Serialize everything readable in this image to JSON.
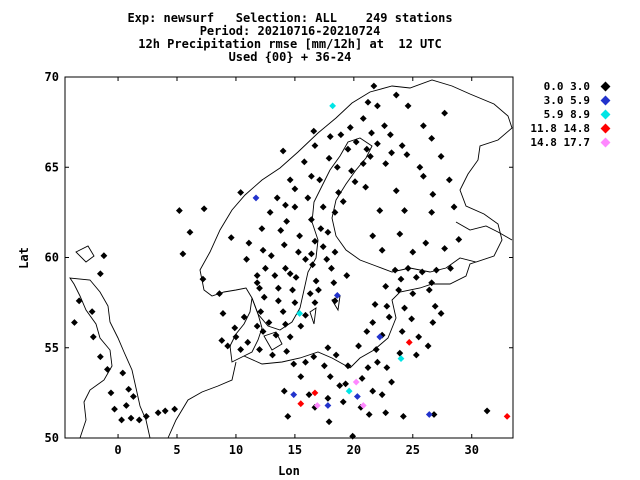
{
  "header": {
    "line1": "Exp: newsurf   Selection: ALL    249 stations",
    "line2": "Period: 20210716-20210724",
    "line3": "12h Precipitation rmse [mm/12h] at  12 UTC",
    "line4": "Used {00} + 36-24"
  },
  "axes": {
    "xlabel": "Lon",
    "ylabel": "Lat",
    "xlim": [
      -4.5,
      33.5
    ],
    "ylim": [
      50,
      70
    ],
    "xticks": [
      "0",
      "5",
      "10",
      "15",
      "20",
      "25",
      "30"
    ],
    "xtick_values": [
      0,
      5,
      10,
      15,
      20,
      25,
      30
    ],
    "yticks": [
      "50",
      "55",
      "60",
      "65",
      "70"
    ],
    "ytick_values": [
      50,
      55,
      60,
      65,
      70
    ]
  },
  "legend": [
    {
      "label": "0.0 3.0",
      "color": "#000000"
    },
    {
      "label": "3.0 5.9",
      "color": "#2233cc"
    },
    {
      "label": "5.9 8.9",
      "color": "#00e5e5"
    },
    {
      "label": "11.8 14.8",
      "color": "#ff0000"
    },
    {
      "label": "14.8 17.7",
      "color": "#ff88ff"
    }
  ],
  "chart_data": {
    "type": "scatter",
    "title": "Exp: newsurf   Selection: ALL    249 stations",
    "xlabel": "Lon",
    "ylabel": "Lat",
    "xlim": [
      -4.5,
      33.5
    ],
    "ylim": [
      50,
      70
    ],
    "series": [
      {
        "name": "0.0 3.0",
        "color": "#000000",
        "points": [
          [
            21.2,
            68.6
          ],
          [
            22.0,
            68.4
          ],
          [
            20.8,
            67.7
          ],
          [
            22.6,
            67.3
          ],
          [
            19.7,
            67.2
          ],
          [
            21.5,
            66.9
          ],
          [
            18.0,
            66.7
          ],
          [
            23.1,
            66.8
          ],
          [
            20.2,
            66.4
          ],
          [
            22.0,
            66.3
          ],
          [
            24.1,
            66.2
          ],
          [
            16.7,
            66.2
          ],
          [
            19.5,
            66.0
          ],
          [
            21.4,
            65.6
          ],
          [
            23.2,
            65.8
          ],
          [
            24.5,
            65.7
          ],
          [
            17.9,
            65.5
          ],
          [
            15.8,
            65.3
          ],
          [
            20.8,
            65.2
          ],
          [
            22.7,
            65.2
          ],
          [
            18.6,
            65.0
          ],
          [
            19.8,
            64.8
          ],
          [
            16.4,
            64.5
          ],
          [
            14.6,
            64.3
          ],
          [
            17.1,
            64.3
          ],
          [
            20.1,
            64.2
          ],
          [
            21.0,
            63.9
          ],
          [
            15.0,
            63.8
          ],
          [
            18.7,
            63.6
          ],
          [
            13.5,
            63.3
          ],
          [
            16.1,
            63.3
          ],
          [
            19.1,
            63.1
          ],
          [
            15.0,
            62.8
          ],
          [
            17.4,
            62.8
          ],
          [
            12.9,
            62.5
          ],
          [
            18.4,
            62.5
          ],
          [
            14.3,
            62.0
          ],
          [
            16.4,
            62.1
          ],
          [
            17.2,
            61.6
          ],
          [
            12.2,
            61.6
          ],
          [
            13.8,
            61.5
          ],
          [
            15.4,
            61.2
          ],
          [
            16.7,
            60.9
          ],
          [
            14.1,
            60.7
          ],
          [
            12.3,
            60.4
          ],
          [
            15.3,
            60.3
          ],
          [
            17.4,
            60.6
          ],
          [
            18.4,
            60.3
          ],
          [
            13.0,
            60.1
          ],
          [
            15.9,
            59.9
          ],
          [
            17.7,
            59.9
          ],
          [
            12.5,
            59.4
          ],
          [
            14.2,
            59.4
          ],
          [
            16.5,
            59.6
          ],
          [
            18.1,
            59.4
          ],
          [
            11.8,
            59.0
          ],
          [
            13.3,
            59.0
          ],
          [
            15.1,
            58.9
          ],
          [
            16.8,
            58.7
          ],
          [
            18.3,
            58.6
          ],
          [
            12.0,
            58.3
          ],
          [
            13.6,
            58.3
          ],
          [
            14.8,
            58.2
          ],
          [
            16.3,
            58.0
          ],
          [
            12.4,
            57.8
          ],
          [
            13.6,
            57.6
          ],
          [
            15.0,
            57.5
          ],
          [
            16.7,
            57.5
          ],
          [
            18.4,
            57.6
          ],
          [
            12.1,
            57.0
          ],
          [
            14.0,
            57.0
          ],
          [
            15.9,
            56.8
          ],
          [
            12.8,
            56.4
          ],
          [
            14.2,
            56.3
          ],
          [
            15.5,
            56.2
          ],
          [
            13.4,
            55.7
          ],
          [
            14.6,
            55.6
          ],
          [
            12.3,
            55.9
          ],
          [
            10.0,
            55.6
          ],
          [
            8.8,
            55.4
          ],
          [
            9.9,
            56.1
          ],
          [
            11.0,
            55.3
          ],
          [
            10.4,
            54.9
          ],
          [
            12.0,
            54.9
          ],
          [
            23.5,
            59.3
          ],
          [
            24.6,
            59.4
          ],
          [
            25.8,
            59.2
          ],
          [
            27.0,
            59.3
          ],
          [
            28.2,
            59.4
          ],
          [
            24.0,
            58.8
          ],
          [
            25.3,
            58.9
          ],
          [
            26.6,
            58.6
          ],
          [
            22.7,
            58.4
          ],
          [
            23.8,
            58.2
          ],
          [
            26.4,
            58.2
          ],
          [
            25.0,
            58.0
          ],
          [
            21.8,
            57.4
          ],
          [
            22.8,
            57.3
          ],
          [
            24.3,
            57.2
          ],
          [
            26.9,
            57.3
          ],
          [
            27.4,
            56.9
          ],
          [
            21.6,
            56.4
          ],
          [
            23.0,
            56.7
          ],
          [
            24.9,
            56.6
          ],
          [
            26.7,
            56.4
          ],
          [
            21.1,
            55.9
          ],
          [
            22.4,
            55.7
          ],
          [
            25.5,
            55.6
          ],
          [
            26.3,
            55.1
          ],
          [
            20.4,
            55.1
          ],
          [
            21.9,
            54.9
          ],
          [
            23.9,
            54.7
          ],
          [
            25.3,
            54.6
          ],
          [
            24.1,
            55.9
          ],
          [
            18.5,
            54.6
          ],
          [
            16.6,
            54.5
          ],
          [
            14.9,
            54.1
          ],
          [
            17.5,
            54.0
          ],
          [
            19.5,
            54.0
          ],
          [
            21.2,
            53.9
          ],
          [
            22.8,
            53.9
          ],
          [
            18.0,
            53.4
          ],
          [
            20.7,
            53.3
          ],
          [
            23.2,
            53.1
          ],
          [
            15.5,
            53.4
          ],
          [
            19.3,
            53.0
          ],
          [
            21.6,
            52.6
          ],
          [
            16.2,
            52.4
          ],
          [
            17.8,
            52.2
          ],
          [
            19.1,
            52.0
          ],
          [
            22.4,
            52.4
          ],
          [
            20.6,
            51.7
          ],
          [
            21.3,
            51.3
          ],
          [
            22.7,
            51.4
          ],
          [
            24.2,
            51.2
          ],
          [
            26.8,
            51.3
          ],
          [
            31.3,
            51.5
          ],
          [
            16.7,
            51.7
          ],
          [
            14.4,
            51.2
          ],
          [
            17.9,
            50.9
          ],
          [
            19.9,
            50.1
          ],
          [
            18.8,
            52.9
          ],
          [
            22.0,
            54.2
          ],
          [
            14.1,
            52.6
          ],
          [
            8.6,
            58.0
          ],
          [
            7.2,
            58.8
          ],
          [
            5.5,
            60.2
          ],
          [
            6.1,
            61.4
          ],
          [
            5.2,
            62.6
          ],
          [
            7.3,
            62.7
          ],
          [
            10.4,
            63.6
          ],
          [
            9.6,
            61.1
          ],
          [
            11.1,
            60.8
          ],
          [
            10.9,
            59.9
          ],
          [
            -1.2,
            60.1
          ],
          [
            -1.5,
            59.1
          ],
          [
            -3.3,
            57.6
          ],
          [
            -2.2,
            57.0
          ],
          [
            -3.7,
            56.4
          ],
          [
            -2.1,
            55.6
          ],
          [
            -1.5,
            54.5
          ],
          [
            -0.9,
            53.8
          ],
          [
            0.4,
            53.6
          ],
          [
            0.9,
            52.7
          ],
          [
            1.3,
            52.3
          ],
          [
            0.7,
            51.8
          ],
          [
            -0.6,
            52.5
          ],
          [
            -0.3,
            51.6
          ],
          [
            1.1,
            51.1
          ],
          [
            0.3,
            51.0
          ],
          [
            1.8,
            51.0
          ],
          [
            2.4,
            51.2
          ],
          [
            3.4,
            51.4
          ],
          [
            4.8,
            51.6
          ],
          [
            4.0,
            51.5
          ],
          [
            14.3,
            54.8
          ],
          [
            15.9,
            54.2
          ],
          [
            17.8,
            55.0
          ],
          [
            13.1,
            54.6
          ],
          [
            10.7,
            56.7
          ],
          [
            8.9,
            56.9
          ],
          [
            11.8,
            56.2
          ],
          [
            9.3,
            55.1
          ],
          [
            14.0,
            65.9
          ],
          [
            16.6,
            67.0
          ],
          [
            18.9,
            66.8
          ],
          [
            21.1,
            66.0
          ],
          [
            14.2,
            62.9
          ],
          [
            17.8,
            61.4
          ],
          [
            16.4,
            60.2
          ],
          [
            14.6,
            59.1
          ],
          [
            17.0,
            58.2
          ],
          [
            11.8,
            58.6
          ],
          [
            19.4,
            59.0
          ],
          [
            27.7,
            60.5
          ],
          [
            25.0,
            60.3
          ],
          [
            22.4,
            60.4
          ],
          [
            21.6,
            61.2
          ],
          [
            23.9,
            61.3
          ],
          [
            26.1,
            60.8
          ],
          [
            28.9,
            61.0
          ],
          [
            22.2,
            62.6
          ],
          [
            24.3,
            62.6
          ],
          [
            26.6,
            62.5
          ],
          [
            28.5,
            62.8
          ],
          [
            23.6,
            63.7
          ],
          [
            26.7,
            63.5
          ],
          [
            25.9,
            64.5
          ],
          [
            28.1,
            64.3
          ],
          [
            25.6,
            65.0
          ],
          [
            27.4,
            65.6
          ],
          [
            26.6,
            66.6
          ],
          [
            25.9,
            67.3
          ],
          [
            27.7,
            68.0
          ],
          [
            23.6,
            69.0
          ],
          [
            21.7,
            69.5
          ],
          [
            24.6,
            68.4
          ]
        ]
      },
      {
        "name": "3.0 5.9",
        "color": "#2233cc",
        "points": [
          [
            11.7,
            63.3
          ],
          [
            18.6,
            57.9
          ],
          [
            22.2,
            55.6
          ],
          [
            14.9,
            52.4
          ],
          [
            17.8,
            51.8
          ],
          [
            20.3,
            52.3
          ],
          [
            26.4,
            51.3
          ]
        ]
      },
      {
        "name": "5.9 8.9",
        "color": "#00e5e5",
        "points": [
          [
            18.2,
            68.4
          ],
          [
            15.4,
            56.9
          ],
          [
            24.0,
            54.4
          ],
          [
            19.6,
            52.6
          ]
        ]
      },
      {
        "name": "11.8 14.8",
        "color": "#ff0000",
        "points": [
          [
            24.7,
            55.3
          ],
          [
            15.5,
            51.9
          ],
          [
            16.7,
            52.5
          ],
          [
            33.0,
            51.2
          ]
        ]
      },
      {
        "name": "14.8 17.7",
        "color": "#ff88ff",
        "points": [
          [
            20.2,
            53.1
          ],
          [
            16.9,
            51.8
          ],
          [
            20.8,
            51.8
          ]
        ]
      }
    ]
  }
}
